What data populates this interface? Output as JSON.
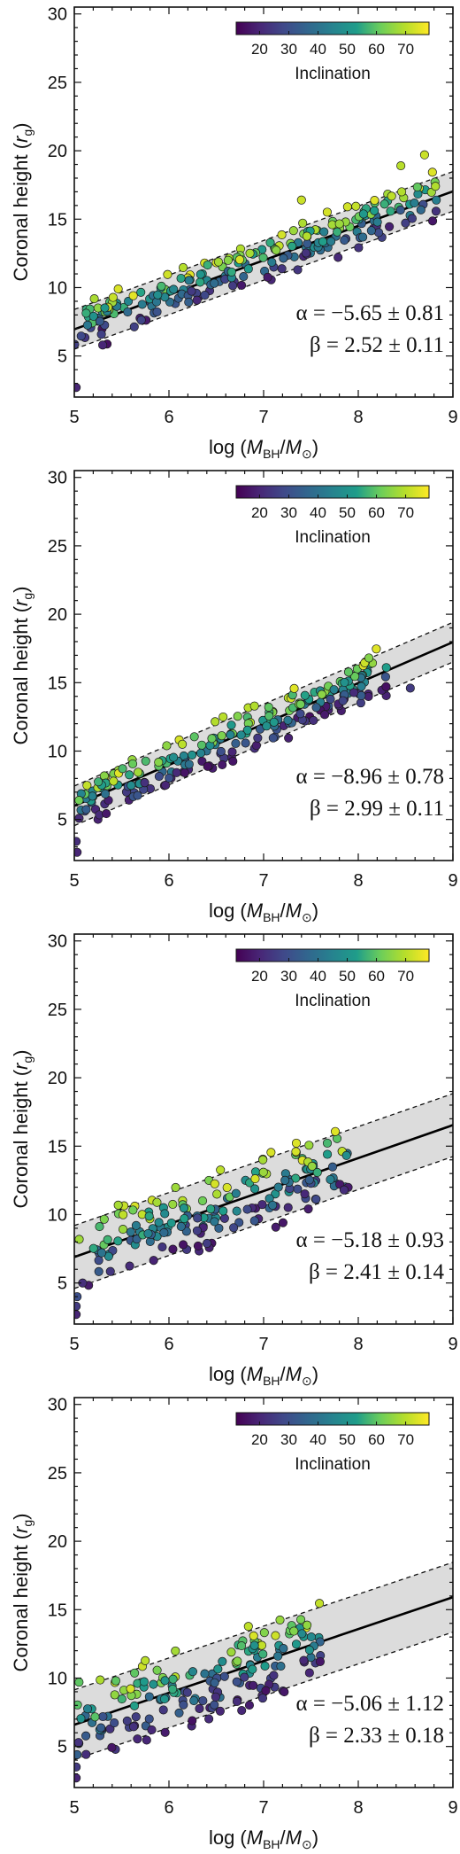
{
  "colorbar": {
    "title": "Inclination",
    "ticks": [
      "20",
      "30",
      "40",
      "50",
      "60",
      "70"
    ],
    "range": [
      12,
      78
    ],
    "colors": [
      "#440154",
      "#482777",
      "#3f4a8a",
      "#31678e",
      "#26838f",
      "#1f9d8a",
      "#6cce5a",
      "#b6de2b",
      "#fee825"
    ]
  },
  "xaxis": {
    "label_prefix": "log (",
    "label_m": "M",
    "label_bh": "BH",
    "label_slash": "/",
    "label_sun": "⊙",
    "label_suffix": ")"
  },
  "yaxis": {
    "label_prefix": "Coronal height (",
    "label_r": "r",
    "label_g": "g",
    "label_suffix": ")"
  },
  "chart_data": [
    {
      "type": "scatter",
      "panel": 1,
      "xlabel": "log (M_BH/M_⊙)",
      "ylabel": "Coronal height (r_g)",
      "xlim": [
        5,
        9
      ],
      "ylim": [
        2,
        30.5
      ],
      "xticks": [
        "5",
        "6",
        "7",
        "8",
        "9"
      ],
      "yticks": [
        "5",
        "10",
        "15",
        "20",
        "25",
        "30"
      ],
      "fit": {
        "alpha": "α = −5.65 ± 0.81",
        "beta": "β = 2.52 ± 0.11",
        "line": [
          [
            5,
            6.95
          ],
          [
            9,
            17.03
          ]
        ],
        "band_width": 1.45
      },
      "seed": 11,
      "n_points": 230,
      "x_range": [
        5.0,
        8.85
      ],
      "extra_points": [
        [
          5.02,
          2.7,
          20
        ],
        [
          8.7,
          19.7,
          72
        ],
        [
          8.45,
          18.9,
          70
        ],
        [
          7.4,
          16.4,
          72
        ],
        [
          5.3,
          5.8,
          20
        ]
      ]
    },
    {
      "type": "scatter",
      "panel": 2,
      "xlabel": "log (M_BH/M_⊙)",
      "ylabel": "Coronal height (r_g)",
      "xlim": [
        5,
        9
      ],
      "ylim": [
        2,
        30.5
      ],
      "xticks": [
        "5",
        "6",
        "7",
        "8",
        "9"
      ],
      "yticks": [
        "5",
        "10",
        "15",
        "20",
        "25",
        "30"
      ],
      "fit": {
        "alpha": "α = −8.96 ± 0.78",
        "beta": "β = 2.99 ± 0.11",
        "line": [
          [
            5,
            6.0
          ],
          [
            9,
            17.96
          ]
        ],
        "band_width": 1.45
      },
      "seed": 23,
      "n_points": 230,
      "x_range": [
        5.0,
        8.3
      ],
      "extra_points": [
        [
          5.03,
          2.6,
          20
        ],
        [
          5.02,
          3.4,
          22
        ],
        [
          8.55,
          14.6,
          25
        ],
        [
          5.05,
          6.4,
          62
        ]
      ]
    },
    {
      "type": "scatter",
      "panel": 3,
      "xlabel": "log (M_BH/M_⊙)",
      "ylabel": "Coronal height (r_g)",
      "xlim": [
        5,
        9
      ],
      "ylim": [
        2,
        30.5
      ],
      "xticks": [
        "5",
        "6",
        "7",
        "8",
        "9"
      ],
      "yticks": [
        "5",
        "10",
        "15",
        "20",
        "25",
        "30"
      ],
      "fit": {
        "alpha": "α = −5.18 ± 0.93",
        "beta": "β = 2.41 ± 0.14",
        "line": [
          [
            5,
            6.9
          ],
          [
            9,
            16.54
          ]
        ],
        "band_width": 2.3
      },
      "seed": 37,
      "n_points": 180,
      "x_range": [
        5.0,
        7.9
      ],
      "extra_points": [
        [
          5.02,
          2.7,
          20
        ],
        [
          5.02,
          3.3,
          25
        ],
        [
          5.03,
          4.0,
          30
        ],
        [
          7.85,
          11.8,
          22
        ]
      ]
    },
    {
      "type": "scatter",
      "panel": 4,
      "xlabel": "log (M_BH/M_⊙)",
      "ylabel": "Coronal height (r_g)",
      "xlim": [
        5,
        9
      ],
      "ylim": [
        2,
        30.5
      ],
      "xticks": [
        "5",
        "6",
        "7",
        "8",
        "9"
      ],
      "yticks": [
        "5",
        "10",
        "15",
        "20",
        "25",
        "30"
      ],
      "fit": {
        "alpha": "α = −5.06 ± 1.12",
        "beta": "β = 2.33 ± 0.18",
        "line": [
          [
            5,
            6.59
          ],
          [
            9,
            15.91
          ]
        ],
        "band_width": 2.55
      },
      "seed": 53,
      "n_points": 175,
      "x_range": [
        5.0,
        7.6
      ],
      "extra_points": [
        [
          5.02,
          2.7,
          20
        ],
        [
          5.02,
          3.5,
          25
        ],
        [
          5.03,
          4.4,
          35
        ],
        [
          5.05,
          9.7,
          60
        ]
      ]
    }
  ]
}
